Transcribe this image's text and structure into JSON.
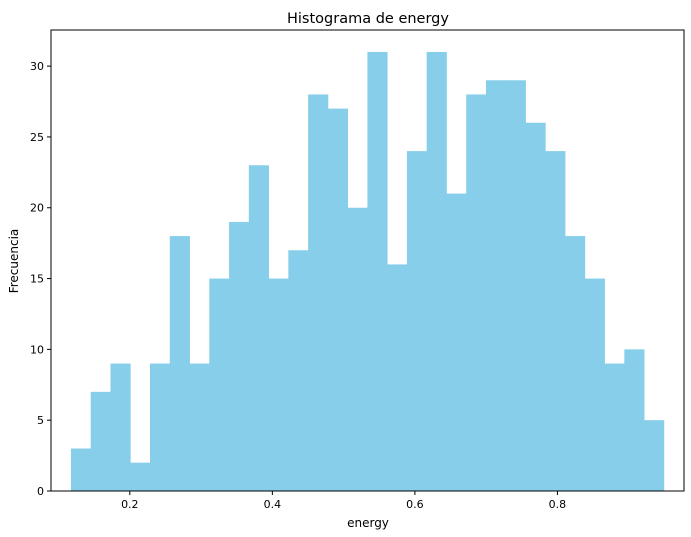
{
  "chart_data": {
    "type": "bar",
    "title": "Histograma de energy",
    "xlabel": "energy",
    "ylabel": "Frecuencia",
    "bar_color": "#87ceeb",
    "x_ticks": [
      "0.2",
      "0.4",
      "0.6",
      "0.8"
    ],
    "y_ticks": [
      "0",
      "5",
      "10",
      "15",
      "20",
      "25",
      "30"
    ],
    "xlim": [
      0.0894,
      0.9776
    ],
    "ylim": [
      0,
      32.55
    ],
    "bin_start": 0.1174,
    "bin_width": 0.02773,
    "values": [
      3,
      7,
      9,
      2,
      9,
      18,
      9,
      15,
      19,
      23,
      15,
      17,
      28,
      27,
      20,
      31,
      16,
      24,
      31,
      21,
      28,
      29,
      29,
      26,
      24,
      18,
      15,
      9,
      10,
      5
    ],
    "grid": false
  }
}
